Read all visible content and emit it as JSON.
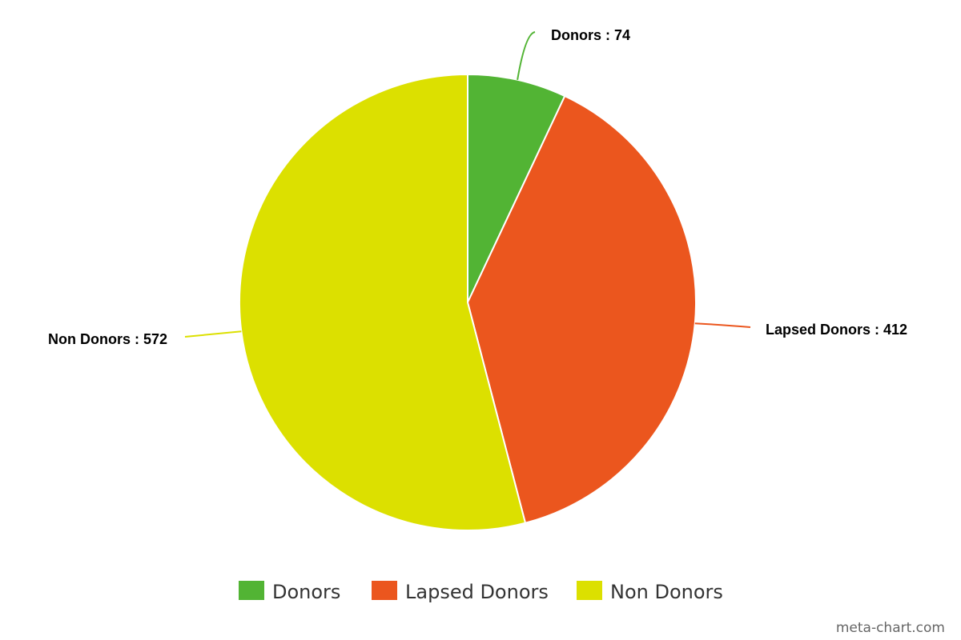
{
  "chart_data": {
    "type": "pie",
    "title": "",
    "categories": [
      "Donors",
      "Lapsed Donors",
      "Non Donors"
    ],
    "values": [
      74,
      412,
      572
    ],
    "labels": [
      "Donors : 74",
      "Lapsed Donors : 412",
      "Non Donors : 572"
    ],
    "colors": [
      "#52b434",
      "#eb561e",
      "#dce000"
    ],
    "start_angle": "12 o'clock, clockwise",
    "legend": {
      "placement": "bottom-center",
      "entries": [
        "Donors",
        "Lapsed Donors",
        "Non Donors"
      ]
    }
  },
  "watermark": "meta-chart.com"
}
